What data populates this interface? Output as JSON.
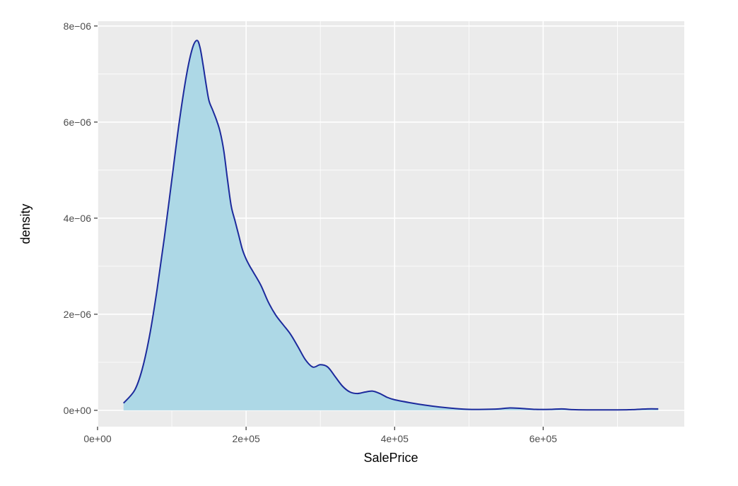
{
  "chart_data": {
    "type": "area",
    "xlabel": "SalePrice",
    "ylabel": "density",
    "xlim": [
      0,
      790000
    ],
    "ylim": [
      -3.4e-07,
      8.1e-06
    ],
    "x_ticks": [
      0,
      200000,
      400000,
      600000
    ],
    "x_tick_labels": [
      "0e+00",
      "2e+05",
      "4e+05",
      "6e+05"
    ],
    "y_ticks": [
      0,
      2e-06,
      4e-06,
      6e-06,
      8e-06
    ],
    "y_tick_labels": [
      "0e+00",
      "2e−06",
      "4e−06",
      "6e−06",
      "8e−06"
    ],
    "grid": true,
    "legend": "none",
    "colors": {
      "fill": "#add8e6",
      "line": "#1c2a9c",
      "panel": "#ebebeb",
      "grid": "#ffffff"
    },
    "x": [
      35000,
      50000,
      60000,
      70000,
      80000,
      90000,
      100000,
      110000,
      120000,
      128000,
      134000,
      138000,
      142000,
      146000,
      150000,
      155000,
      160000,
      165000,
      170000,
      175000,
      180000,
      185000,
      190000,
      195000,
      200000,
      205000,
      210000,
      220000,
      230000,
      240000,
      250000,
      260000,
      270000,
      280000,
      290000,
      300000,
      310000,
      320000,
      330000,
      340000,
      350000,
      360000,
      370000,
      380000,
      390000,
      400000,
      420000,
      440000,
      460000,
      480000,
      500000,
      520000,
      540000,
      555000,
      570000,
      590000,
      610000,
      625000,
      640000,
      660000,
      680000,
      700000,
      720000,
      740000,
      755000
    ],
    "y": [
      1.5e-07,
      4.2e-07,
      8.5e-07,
      1.55e-06,
      2.5e-06,
      3.6e-06,
      4.8e-06,
      6e-06,
      7e-06,
      7.55e-06,
      7.7e-06,
      7.55e-06,
      7.2e-06,
      6.8e-06,
      6.45e-06,
      6.25e-06,
      6.05e-06,
      5.8e-06,
      5.4e-06,
      4.8e-06,
      4.25e-06,
      3.95e-06,
      3.65e-06,
      3.35e-06,
      3.15e-06,
      3e-06,
      2.87e-06,
      2.6e-06,
      2.25e-06,
      1.98e-06,
      1.78e-06,
      1.58e-06,
      1.32e-06,
      1.05e-06,
      9e-07,
      9.5e-07,
      9e-07,
      7e-07,
      5e-07,
      3.8e-07,
      3.5e-07,
      3.8e-07,
      4e-07,
      3.5e-07,
      2.7e-07,
      2.2e-07,
      1.6e-07,
      1.1e-07,
      7e-08,
      4e-08,
      2e-08,
      2e-08,
      3e-08,
      5e-08,
      4e-08,
      2e-08,
      2e-08,
      3e-08,
      1.5e-08,
      1e-08,
      1e-08,
      1e-08,
      1.5e-08,
      3e-08,
      3e-08
    ]
  }
}
